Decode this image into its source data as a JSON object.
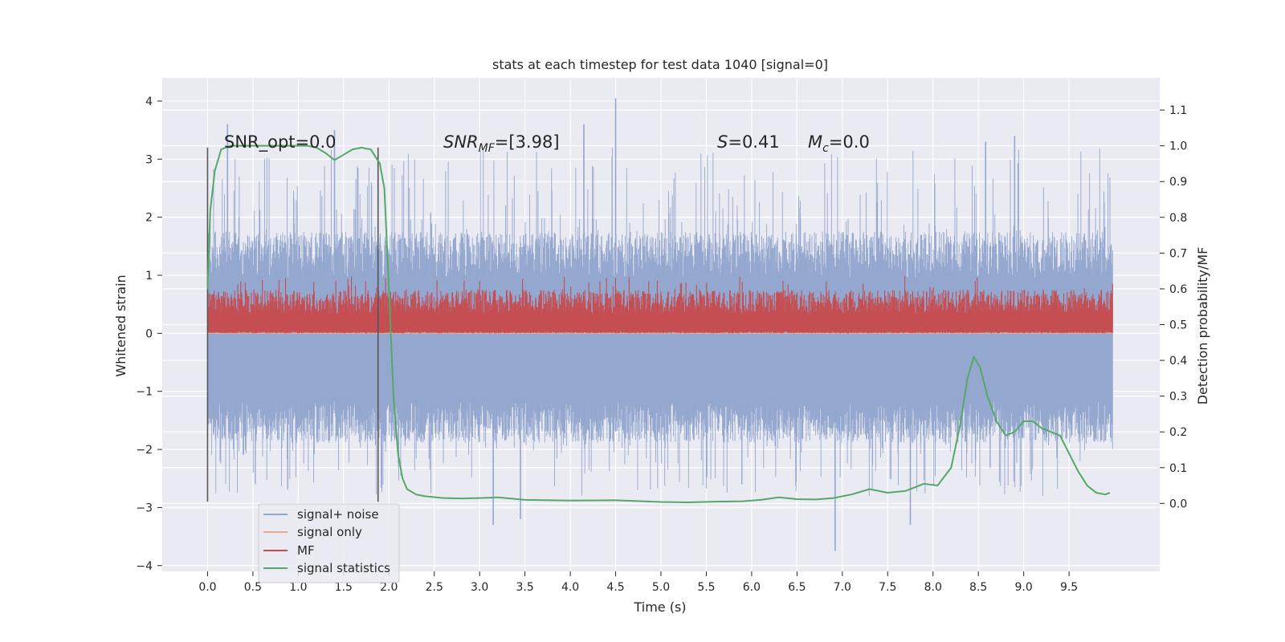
{
  "chart_data": {
    "type": "line",
    "title": "stats at each timestep for test data 1040 [signal=0]",
    "xlabel": "Time (s)",
    "ylabel": "Whitened strain",
    "y2label": "Detection probability/MF",
    "xlim": [
      -0.5,
      10.5
    ],
    "ylim": [
      -4.1,
      4.4
    ],
    "y2lim": [
      -0.19,
      1.19
    ],
    "xticks": [
      0.0,
      0.5,
      1.0,
      1.5,
      2.0,
      2.5,
      3.0,
      3.5,
      4.0,
      4.5,
      5.0,
      5.5,
      6.0,
      6.5,
      7.0,
      7.5,
      8.0,
      8.5,
      9.0,
      9.5
    ],
    "xtick_labels": [
      "0.0",
      "0.5",
      "1.0",
      "1.5",
      "2.0",
      "2.5",
      "3.0",
      "3.5",
      "4.0",
      "4.5",
      "5.0",
      "5.5",
      "6.0",
      "6.5",
      "7.0",
      "7.5",
      "8.0",
      "8.5",
      "9.0",
      "9.5"
    ],
    "yticks": [
      4,
      3,
      2,
      1,
      0,
      -1,
      -2,
      -3,
      -4
    ],
    "ytick_labels": [
      "4",
      "3",
      "2",
      "1",
      "0",
      "−1",
      "−2",
      "−3",
      "−4"
    ],
    "y2ticks": [
      1.1,
      1.0,
      0.9,
      0.8,
      0.7,
      0.6,
      0.5,
      0.4,
      0.3,
      0.2,
      0.1,
      0.0
    ],
    "y2tick_labels": [
      "1.1",
      "1.0",
      "0.9",
      "0.8",
      "0.7",
      "0.6",
      "0.5",
      "0.4",
      "0.3",
      "0.2",
      "0.1",
      "0.0"
    ],
    "grid": true,
    "legend_position": "lower-left",
    "annotations": {
      "snr_opt": "SNR_opt=0.0",
      "snr_mf_base": "SNR",
      "snr_mf_sub": "MF",
      "snr_mf_value": "=[3.98]",
      "s_label": "S",
      "s_value": "=0.41",
      "mc_base": "M",
      "mc_sub": "c",
      "mc_value": "=0.0"
    },
    "markers": {
      "vlines_x": [
        0.0,
        1.88
      ],
      "vlines_y": [
        -2.9,
        3.2
      ]
    },
    "series": [
      {
        "name": "signal+ noise",
        "color": "#94a7cf",
        "x_range": [
          0.0,
          9.98
        ],
        "band": {
          "high_core": 1.35,
          "low_core": -1.45,
          "spike_max": 4.05,
          "spike_min": -3.75
        },
        "spikes": [
          [
            0.22,
            3.6
          ],
          [
            1.4,
            3.5
          ],
          [
            4.5,
            4.05
          ],
          [
            4.15,
            3.6
          ],
          [
            6.92,
            -3.75
          ],
          [
            3.15,
            -3.3
          ],
          [
            3.45,
            -3.2
          ],
          [
            7.75,
            -3.3
          ],
          [
            8.58,
            3.3
          ],
          [
            8.9,
            3.4
          ]
        ]
      },
      {
        "name": "signal only",
        "color": "#eea98b",
        "values_constant": 0.0
      },
      {
        "name": "MF",
        "color": "#c44e52",
        "x_range": [
          0.0,
          9.98
        ],
        "band": {
          "low": 0.0,
          "high_core": 0.75,
          "spike_max": 1.0
        }
      },
      {
        "name": "signal statistics",
        "color": "#55a868",
        "axis": "right",
        "x": [
          0.0,
          0.03,
          0.08,
          0.15,
          0.25,
          0.4,
          0.6,
          0.8,
          1.0,
          1.1,
          1.2,
          1.3,
          1.4,
          1.5,
          1.6,
          1.7,
          1.75,
          1.8,
          1.85,
          1.9,
          1.95,
          2.0,
          2.05,
          2.1,
          2.15,
          2.2,
          2.3,
          2.4,
          2.6,
          2.8,
          3.0,
          3.2,
          3.5,
          4.0,
          4.5,
          5.0,
          5.3,
          5.6,
          5.9,
          6.1,
          6.3,
          6.5,
          6.7,
          6.9,
          7.1,
          7.3,
          7.5,
          7.7,
          7.9,
          8.05,
          8.2,
          8.3,
          8.38,
          8.45,
          8.52,
          8.6,
          8.7,
          8.8,
          8.9,
          9.0,
          9.1,
          9.2,
          9.3,
          9.4,
          9.5,
          9.6,
          9.7,
          9.8,
          9.9,
          9.95
        ],
        "y": [
          0.6,
          0.82,
          0.93,
          0.99,
          1.0,
          1.0,
          1.0,
          1.0,
          1.0,
          1.0,
          0.995,
          0.98,
          0.96,
          0.975,
          0.99,
          0.995,
          0.992,
          0.99,
          0.97,
          0.95,
          0.88,
          0.6,
          0.3,
          0.14,
          0.07,
          0.04,
          0.025,
          0.02,
          0.015,
          0.014,
          0.015,
          0.017,
          0.01,
          0.008,
          0.009,
          0.004,
          0.003,
          0.005,
          0.006,
          0.01,
          0.017,
          0.012,
          0.011,
          0.015,
          0.025,
          0.04,
          0.03,
          0.035,
          0.055,
          0.05,
          0.1,
          0.22,
          0.35,
          0.41,
          0.38,
          0.3,
          0.23,
          0.19,
          0.2,
          0.23,
          0.23,
          0.21,
          0.2,
          0.19,
          0.14,
          0.09,
          0.05,
          0.03,
          0.025,
          0.03
        ]
      }
    ]
  }
}
